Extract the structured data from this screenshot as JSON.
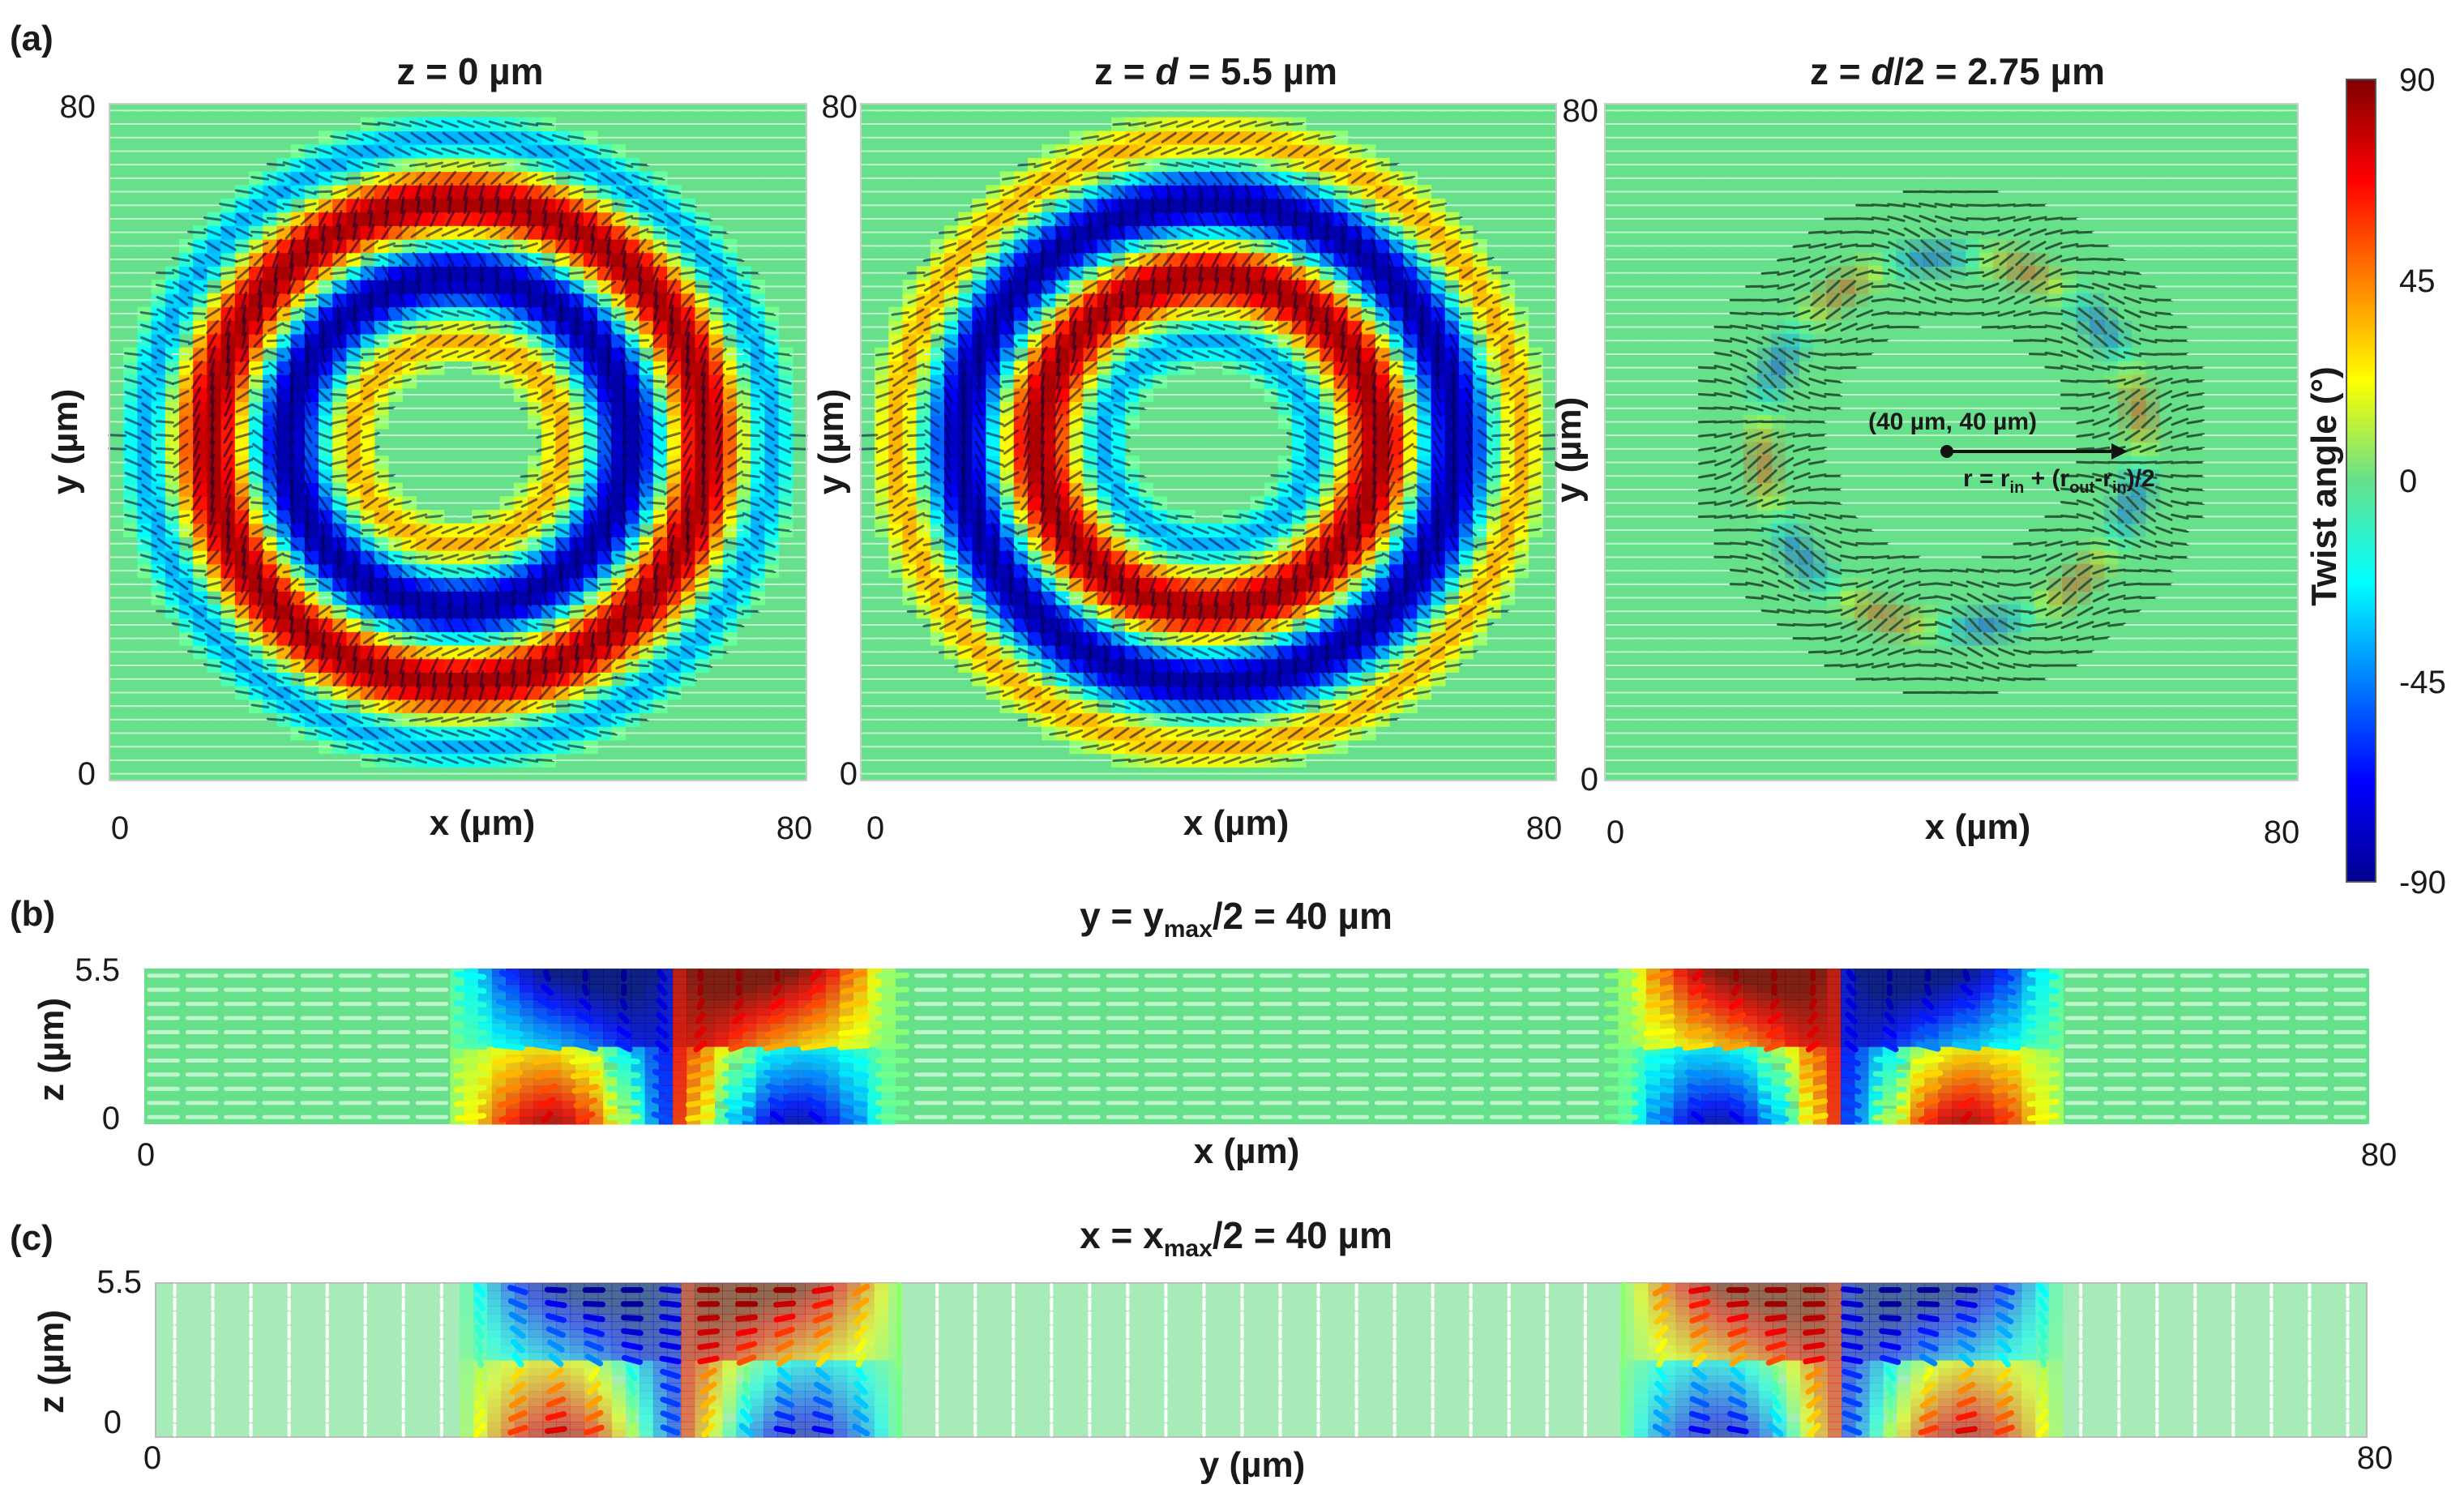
{
  "chart_data": [
    {
      "id": "a1",
      "panel_label": "(a)",
      "type": "heatmap",
      "title": "z = 0 µm",
      "xlabel": "x (µm)",
      "ylabel": "y (µm)",
      "xlim": [
        0,
        80
      ],
      "ylim": [
        0,
        80
      ],
      "x_tick_labels": [
        "0",
        "80"
      ],
      "y_tick_labels": [
        "0",
        "80"
      ],
      "field": {
        "center": [
          40,
          40
        ],
        "r_in": 18,
        "r_out": 30,
        "ring_width": 9,
        "sign": 1
      }
    },
    {
      "id": "a2",
      "type": "heatmap",
      "title": "z = d = 5.5 µm",
      "xlabel": "x (µm)",
      "ylabel": "y (µm)",
      "xlim": [
        0,
        80
      ],
      "ylim": [
        0,
        80
      ],
      "x_tick_labels": [
        "0",
        "80"
      ],
      "y_tick_labels": [
        "0",
        "80"
      ],
      "field": {
        "center": [
          40,
          40
        ],
        "r_in": 18,
        "r_out": 30,
        "ring_width": 9,
        "sign": -1
      }
    },
    {
      "id": "a3",
      "type": "heatmap",
      "title": "z = d/2 = 2.75 µm",
      "xlabel": "x (µm)",
      "ylabel": "y (µm)",
      "xlim": [
        0,
        80
      ],
      "ylim": [
        0,
        80
      ],
      "x_tick_labels": [
        "0",
        "80"
      ],
      "y_tick_labels": [
        "0",
        "80"
      ],
      "field": {
        "center": [
          40,
          40
        ],
        "r_mid": 22
      },
      "annotation_point": "(40 µm, 40 µm)",
      "annotation_radius": "r = rin + (rout-rin)/2"
    },
    {
      "id": "b",
      "panel_label": "(b)",
      "type": "heatmap",
      "title": "y = ymax/2 = 40 µm",
      "xlabel": "x (µm)",
      "ylabel": "z (µm)",
      "xlim": [
        0,
        80
      ],
      "ylim": [
        0,
        5.5
      ],
      "x_tick_labels": [
        "0",
        "80"
      ],
      "y_tick_labels": [
        "0",
        "5.5"
      ],
      "domain_walls_x": [
        19,
        61
      ]
    },
    {
      "id": "c",
      "panel_label": "(c)",
      "type": "heatmap",
      "title": "x = xmax/2 = 40 µm",
      "xlabel": "y (µm)",
      "ylabel": "z (µm)",
      "xlim": [
        0,
        80
      ],
      "ylim": [
        0,
        5.5
      ],
      "x_tick_labels": [
        "0",
        "80"
      ],
      "y_tick_labels": [
        "0",
        "5.5"
      ],
      "domain_walls_x": [
        19,
        61
      ]
    }
  ],
  "colorbar": {
    "label": "Twist angle (°)",
    "range": [
      -90,
      90
    ],
    "ticks": [
      "90",
      "45",
      "0",
      "-45",
      "-90"
    ],
    "colormap": "jet"
  },
  "text": {
    "panel_a": "(a)",
    "panel_b": "(b)",
    "panel_c": "(c)",
    "title_a1": "z = 0 µm",
    "title_a2_pre": "z = ",
    "title_a2_d": "d",
    "title_a2_post": " = 5.5 µm",
    "title_a3_pre": "z = ",
    "title_a3_d": "d",
    "title_a3_post": "/2 = 2.75 µm",
    "title_b_pre": "y = y",
    "title_b_sub": "max",
    "title_b_post": "/2 = 40 µm",
    "title_c_pre": "x = x",
    "title_c_sub": "max",
    "title_c_post": "/2 = 40 µm",
    "annot_point": "(40 µm, 40 µm)",
    "annot_r_pre": "r = r",
    "annot_r_in": "in",
    "annot_r_mid": " + (r",
    "annot_r_out": "out",
    "annot_r_dash": "-r",
    "annot_r_in2": "in",
    "annot_r_post": ")/2"
  }
}
